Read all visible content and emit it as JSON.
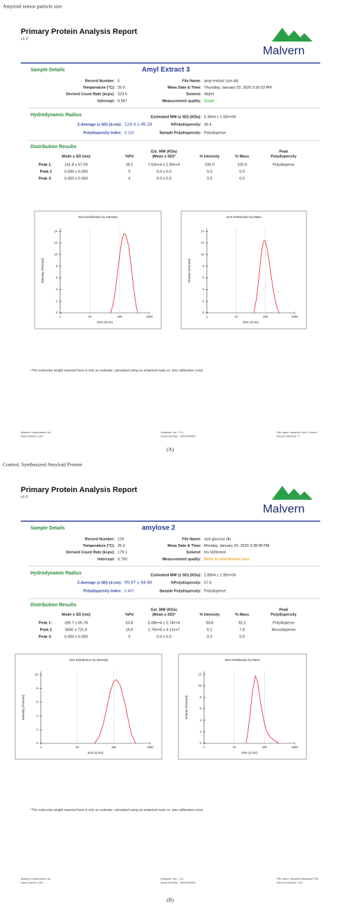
{
  "reports": [
    {
      "caption": "Amyloid sensor particle size",
      "title": "Primary Protein Analysis Report",
      "version": "v1.0",
      "logo": "Malvern",
      "sample_heading": "Sample Details",
      "sample_name": "Amyl Extract 3",
      "details_left": [
        [
          "Record Number:",
          "5"
        ],
        [
          "Temperature (°C):",
          "25.0"
        ],
        [
          "Derived Count Rate (kcps):",
          "223.6"
        ],
        [
          "Intercept:",
          "0.967"
        ]
      ],
      "details_right": [
        {
          "label": "File Name:",
          "value": "amyl extract size.dts"
        },
        {
          "label": "Meas Date & Time:",
          "value": "Thursday, January 23, 2020 3:16:23 PM"
        },
        {
          "label": "Solvent:",
          "value": "Water"
        },
        {
          "label": "Measurement quality:",
          "value": "Good",
          "color": "#2fc42f"
        }
      ],
      "hydro_heading": "Hydrodynamic Radius",
      "hydro": [
        {
          "label": "Estimated MW (± SD) (KDa):",
          "value": "5.30e4  ± 1.93e+04"
        },
        {
          "label": "Z-Average (± SD) (d.nm):",
          "value": "124.4  ±  45.24"
        },
        {
          "label": "%Polydispersity:",
          "value": "36.4"
        },
        {
          "label": "Polydispersity Index:",
          "value": "0.132"
        },
        {
          "label": "Sample Polydispersity:",
          "value": "Polydisperse"
        }
      ],
      "dist_heading": "Distribution Results",
      "table": {
        "headers": [
          [
            "Mode ± SD (nm)"
          ],
          [
            "%Pd"
          ],
          [
            "Est. MW (KDa)",
            "(Mean ± SD)*"
          ],
          [
            "% Intensity"
          ],
          [
            "% Mass"
          ],
          [
            "Peak",
            "Polydispersity"
          ]
        ],
        "rows": [
          [
            "Peak 1:",
            "141.8  ± 57.00",
            "39.2",
            "7.63e+4 ± 2.99e+4",
            "100.0",
            "100.0",
            "Polydisperse"
          ],
          [
            "Peak 2",
            "0.000  ± 0.000",
            "0",
            "0.0 ± 0.0",
            "0.0",
            "0.0"
          ],
          [
            "Peak 3:",
            "0.000  ± 0.000",
            "0",
            "0.0 ± 0.0",
            "0.0",
            "0.0"
          ]
        ]
      },
      "footnote": "*The molecular weight reported here is only an estimate, calculated using an empirical mass vs. size calibration curve.",
      "footer": [
        [
          "Malvern Instruments Ltd",
          "www.malvern.com"
        ],
        [
          "Zetasizer Ver. 7.11",
          "Serial Number : MAL500909"
        ],
        [
          "File name: amyloid Gov2 Correct",
          "Record Number: 5"
        ]
      ],
      "label": "(A)"
    },
    {
      "caption": "Control, Synthesized Amyloid Protein",
      "title": "Primary Protein Analysis Report",
      "version": "v1.0",
      "logo": "Malvern",
      "sample_heading": "Sample Details",
      "sample_name": "amylose 2",
      "details_left": [
        [
          "Record Number:",
          "129"
        ],
        [
          "Temperature (°C):",
          "25.0"
        ],
        [
          "Derived Count Rate (kcps):",
          "179.1"
        ],
        [
          "Intercept:",
          "0.790"
        ]
      ],
      "details_right": [
        {
          "label": "File Name:",
          "value": "size glucose.dts"
        },
        {
          "label": "Meas Date & Time:",
          "value": "Monday, January 20, 2020 3:28:08 PM"
        },
        {
          "label": "Solvent:",
          "value": "tris 500mmol"
        },
        {
          "label": "Measurement quality:",
          "value": "Refer to distribution only",
          "color": "#f0a020"
        }
      ],
      "hydro_heading": "Hydrodynamic Radius",
      "hydro": [
        {
          "label": "Estimated MW (± SD) (KDa):",
          "value": "2.89e4  ± 1.95e+04"
        },
        {
          "label": "Z-Average (± SD) (d.nm):",
          "value": "95.97  ±  64.88"
        },
        {
          "label": "%Polydispersity:",
          "value": "67.6"
        },
        {
          "label": "Polydispersity Index:",
          "value": "0.457"
        },
        {
          "label": "Sample Polydispersity:",
          "value": "Polydisperse"
        }
      ],
      "dist_heading": "Distribution Results",
      "table": {
        "headers": [
          [
            "Mode ± SD (nm)"
          ],
          [
            "%Pd"
          ],
          [
            "Est. MW (KDa)",
            "(Mean ± SD)*"
          ],
          [
            "% Intensity"
          ],
          [
            "% Mass"
          ],
          [
            "Peak",
            "Polydispersity"
          ]
        ],
        "rows": [
          [
            "Peak 1:",
            "105.7  ± 65.78",
            "53.8",
            "5.08e+4 ± 2.74e+4",
            "93.8",
            "92.2",
            "Polydisperse"
          ],
          [
            "Peak 2",
            "5560  ± 721.0",
            "15.0",
            "2.75e+8 ± 4.11e+7",
            "6.2",
            "7.8",
            "Monodisperse"
          ],
          [
            "Peak 3:",
            "0.000  ± 0.000",
            "0",
            "0.0 ± 0.0",
            "0.0",
            "0.0"
          ]
        ]
      },
      "footnote": "*The molecular weight reported here is only an estimate, calculated using an empirical mass vs. size calibration curve.",
      "footer": [
        [
          "Malvern Instruments Ltd",
          "www.malvern.com"
        ],
        [
          "Zetasizer Ver. 7.11",
          "Serial Number : MAL500909"
        ],
        [
          "File name: Amyloid Standard PSD",
          "Record Number: 129"
        ]
      ],
      "label": "(B)"
    }
  ],
  "chart_data": [
    {
      "type": "line",
      "title": "Size Distribution by Intensity",
      "x_label": "Size (d.nm)",
      "y_label": "Intensity (Percent)",
      "log_x": true,
      "x_grid": true,
      "xlim": [
        1,
        1000
      ],
      "xticks": [
        1,
        10,
        100,
        1000
      ],
      "ylim": [
        0,
        14.5
      ],
      "yticks": [
        0,
        2,
        4,
        6,
        8,
        10,
        12,
        14
      ],
      "x": [
        50,
        60,
        70,
        80,
        90,
        100,
        120,
        140,
        160,
        200,
        250,
        300,
        350,
        400
      ],
      "series": [
        {
          "color": "#e8202a",
          "values": [
            0,
            1.5,
            3.5,
            5.8,
            8,
            10,
            12.6,
            13.6,
            13.4,
            11.5,
            7.5,
            4,
            1.5,
            0
          ]
        }
      ]
    },
    {
      "type": "line",
      "title": "Size Distribution by Mass",
      "x_label": "Size (d.nm)",
      "y_label": "Volume (Percent)",
      "log_x": true,
      "x_grid": true,
      "xlim": [
        1,
        1000
      ],
      "xticks": [
        1,
        10,
        100,
        1000
      ],
      "ylim": [
        0,
        14.5
      ],
      "yticks": [
        0,
        2,
        4,
        6,
        8,
        10,
        12,
        14
      ],
      "x": [
        40,
        50,
        60,
        70,
        80,
        90,
        100,
        120,
        150,
        200,
        250,
        300
      ],
      "series": [
        {
          "color": "#e8202a",
          "values": [
            0,
            2.5,
            6,
            9.5,
            11.5,
            12.4,
            12.3,
            10.5,
            7,
            3,
            0.8,
            0
          ]
        }
      ]
    },
    {
      "type": "line",
      "title": "Size Distribution by Intensity",
      "x_label": "Size (d.nm)",
      "y_label": "Intensity (Percent)",
      "log_x": true,
      "x_grid": true,
      "xlim": [
        1,
        1000
      ],
      "xticks": [
        1,
        10,
        100,
        1000
      ],
      "ylim": [
        0,
        10.5
      ],
      "yticks": [
        0,
        2,
        4,
        6,
        8,
        10
      ],
      "x": [
        30,
        40,
        50,
        60,
        70,
        80,
        100,
        120,
        150,
        200,
        250,
        300,
        400
      ],
      "series": [
        {
          "color": "#e8202a",
          "values": [
            0,
            1,
            2.5,
            4.3,
            6,
            7.5,
            9,
            9.3,
            8.5,
            6,
            3.5,
            1.5,
            0
          ]
        }
      ]
    },
    {
      "type": "line",
      "title": "Size Distribution by Mass",
      "x_label": "Size (d.nm)",
      "y_label": "Volume (Percent)",
      "log_x": true,
      "x_grid": true,
      "xlim": [
        1,
        1000
      ],
      "xticks": [
        1,
        10,
        100,
        1000
      ],
      "ylim": [
        0,
        12.5
      ],
      "yticks": [
        0,
        2,
        4,
        6,
        8,
        10,
        12
      ],
      "x": [
        25,
        30,
        35,
        40,
        50,
        60,
        70,
        80,
        100,
        120,
        150,
        200,
        300
      ],
      "series": [
        {
          "color": "#e8202a",
          "values": [
            0,
            3,
            6,
            9,
            11.8,
            10.5,
            8,
            6,
            3.5,
            2,
            1.2,
            0.6,
            0
          ]
        }
      ]
    }
  ]
}
